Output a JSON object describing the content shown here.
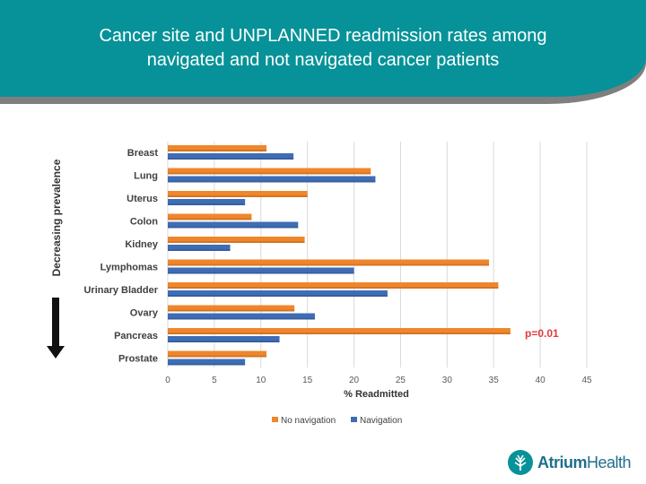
{
  "header": {
    "title_line1": "Cancer site and UNPLANNED readmission rates among",
    "title_line2": "navigated and not navigated cancer patients"
  },
  "side_label": "Decreasing prevalence",
  "annotation": "p=0.01",
  "logo": {
    "word1": "Atrium",
    "word2": "Health",
    "emblem_icon": "tree-leaf-icon"
  },
  "colors": {
    "banner": "#069298",
    "no_navigation": "#F0862B",
    "navigation": "#3F6DB5",
    "annotation": "#E03A3A"
  },
  "chart_data": {
    "type": "bar",
    "orientation": "horizontal",
    "categories": [
      "Breast",
      "Lung",
      "Uterus",
      "Colon",
      "Kidney",
      "Lymphomas",
      "Urinary Bladder",
      "Ovary",
      "Pancreas",
      "Prostate"
    ],
    "series": [
      {
        "name": "No navigation",
        "values": [
          10.6,
          21.8,
          15.0,
          9.0,
          14.7,
          34.5,
          35.5,
          13.6,
          36.8,
          10.6
        ]
      },
      {
        "name": "Navigation",
        "values": [
          13.5,
          22.3,
          8.3,
          14.0,
          6.7,
          20.0,
          23.6,
          15.8,
          12.0,
          8.3
        ]
      }
    ],
    "xlabel": "% Readmitted",
    "xlim": [
      0,
      45
    ],
    "xticks": [
      0,
      5,
      10,
      15,
      20,
      25,
      30,
      35,
      40,
      45
    ],
    "grid": true,
    "legend": "bottom-center"
  }
}
